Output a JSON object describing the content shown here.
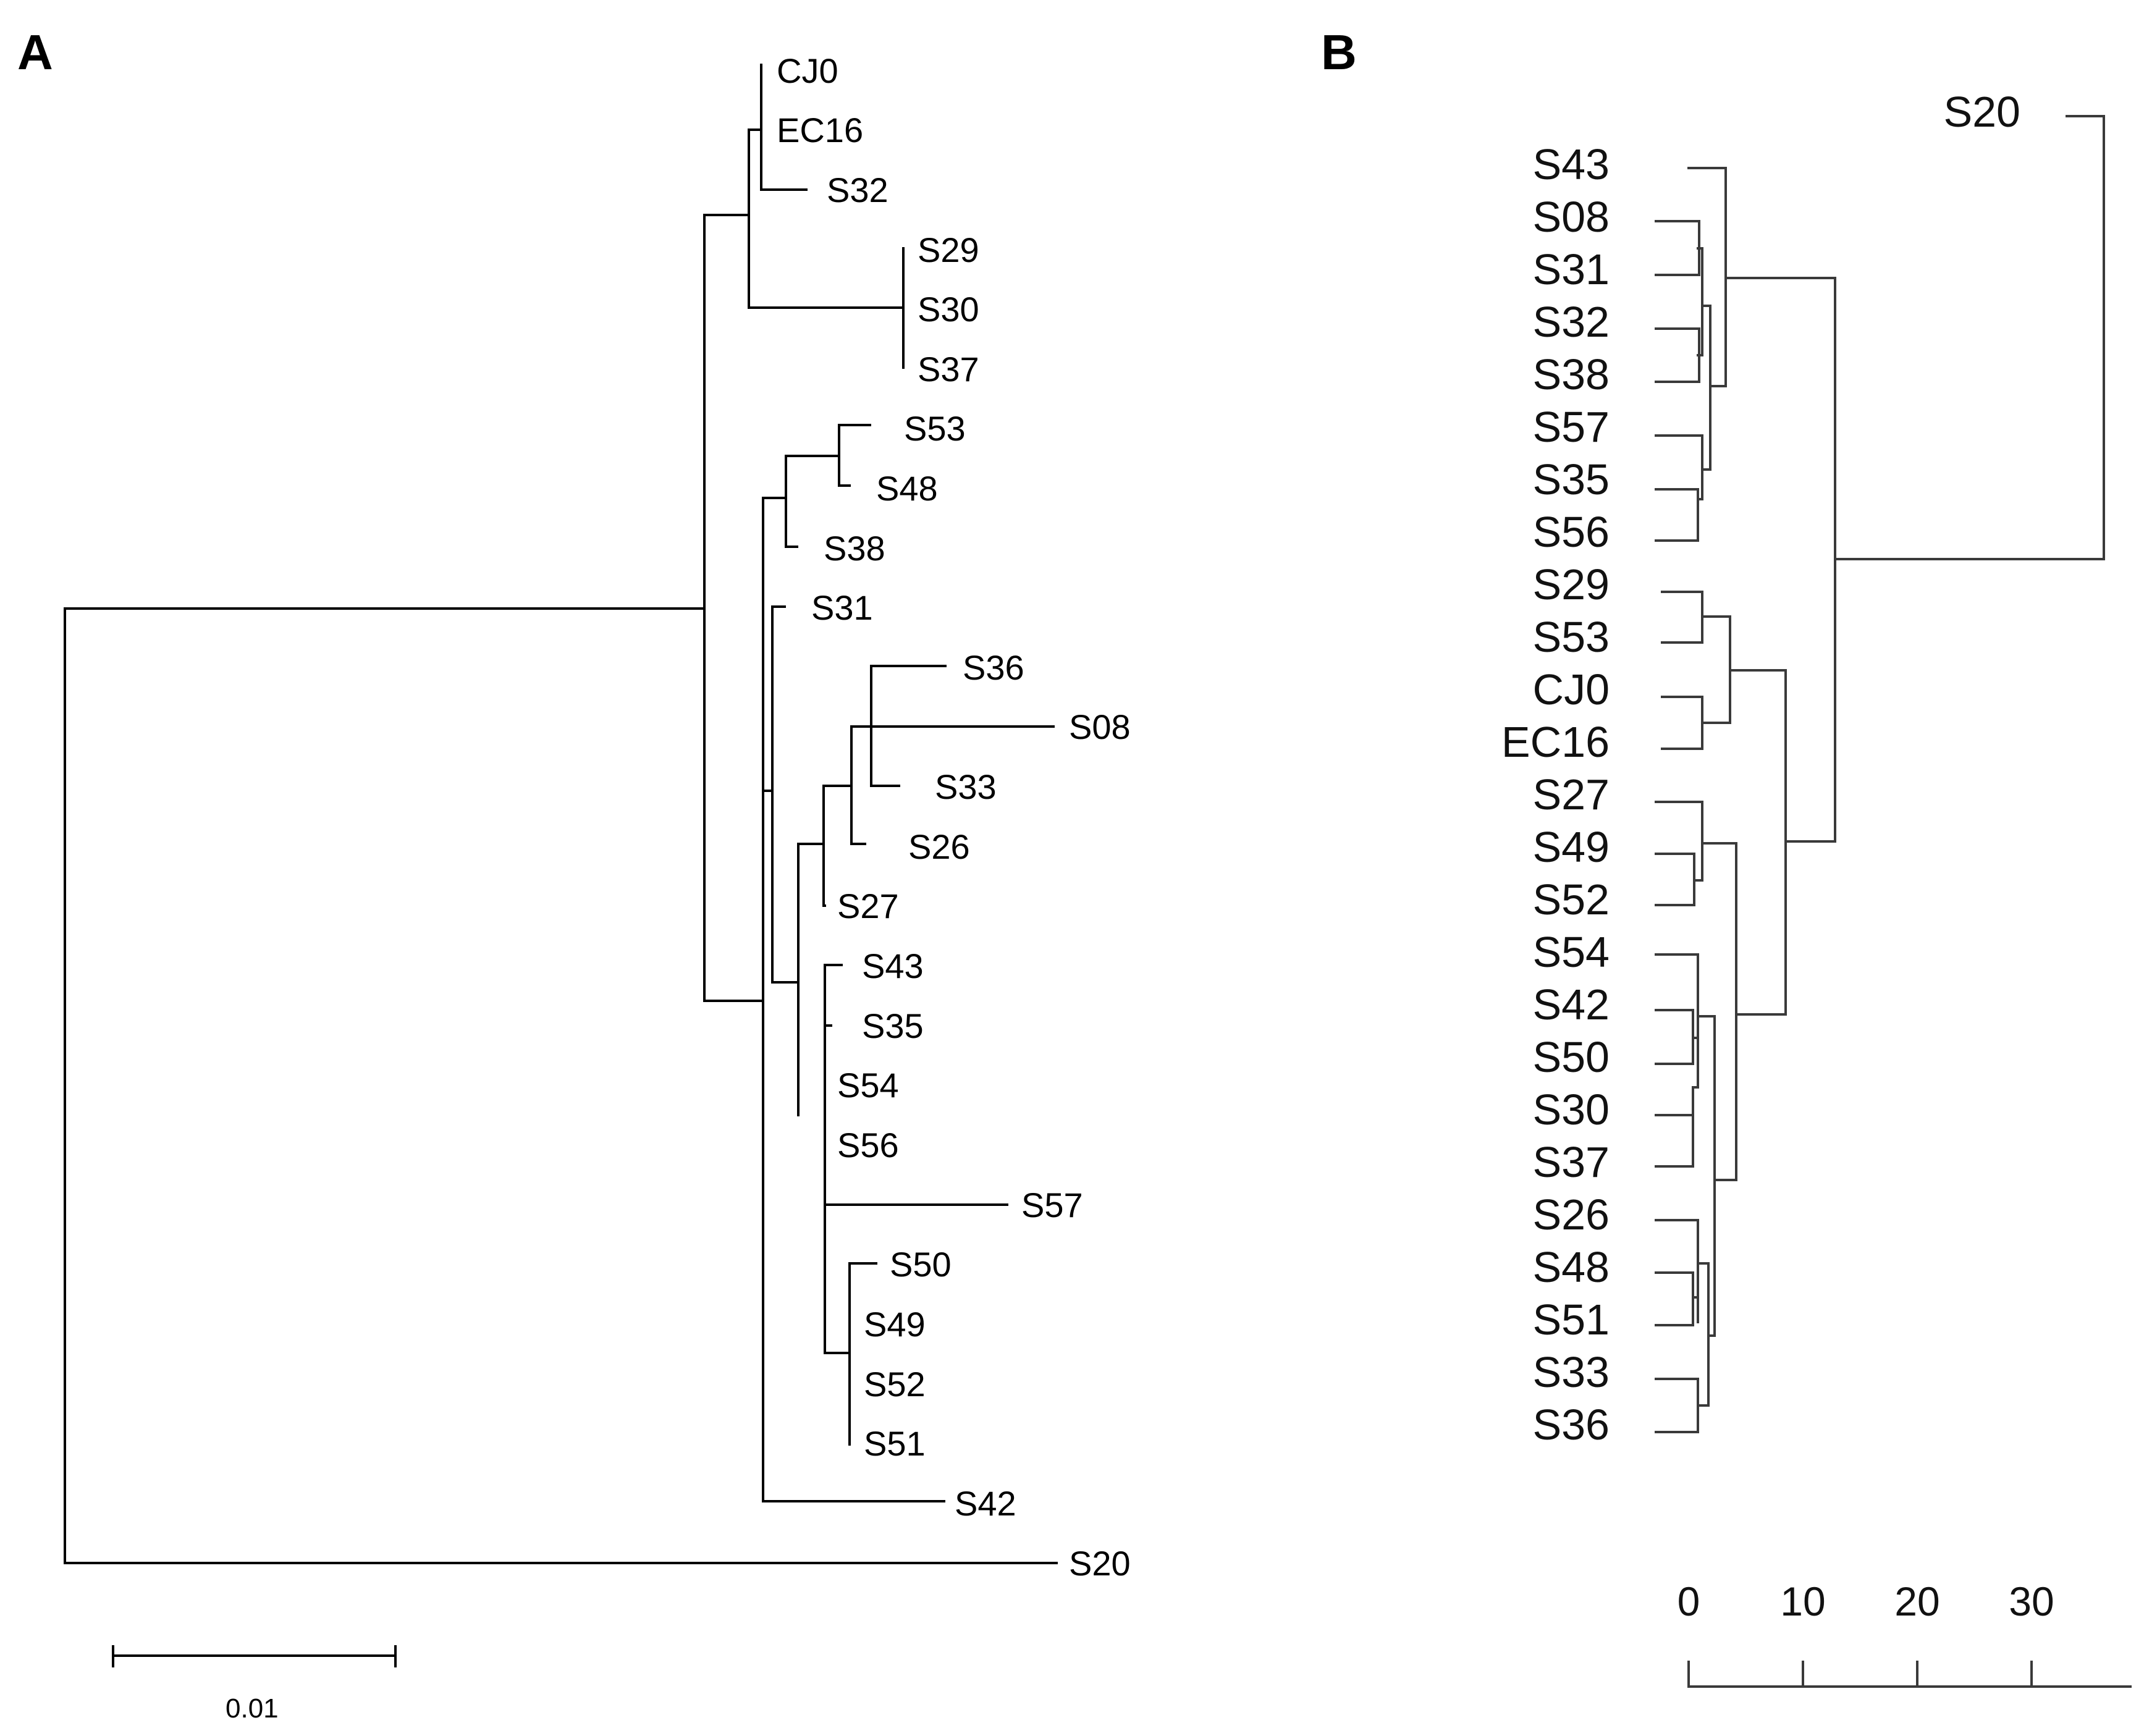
{
  "figure": {
    "panel_a": {
      "label": "A",
      "scale_bar_label": "0.01",
      "leaves": [
        "CJ0",
        "EC16",
        "S32",
        "S29",
        "S30",
        "S37",
        "S53",
        "S48",
        "S38",
        "S31",
        "S36",
        "S08",
        "S33",
        "S26",
        "S27",
        "S43",
        "S35",
        "S54",
        "S56",
        "S57",
        "S50",
        "S49",
        "S52",
        "S51",
        "S42",
        "S20"
      ]
    },
    "panel_b": {
      "label": "B",
      "leaves": [
        "S20",
        "S43",
        "S08",
        "S31",
        "S32",
        "S38",
        "S57",
        "S35",
        "S56",
        "S29",
        "S53",
        "CJ0",
        "EC16",
        "S27",
        "S49",
        "S52",
        "S54",
        "S42",
        "S50",
        "S30",
        "S37",
        "S26",
        "S48",
        "S51",
        "S33",
        "S36"
      ],
      "axis_ticks": [
        "0",
        "10",
        "20",
        "30"
      ]
    }
  }
}
